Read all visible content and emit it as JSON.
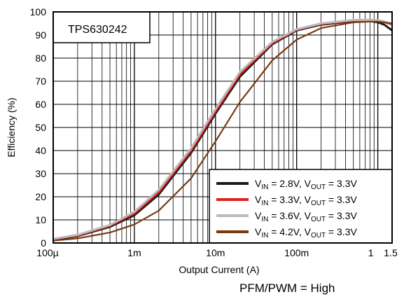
{
  "chart_data": {
    "type": "line",
    "title": "TPS630242",
    "xlabel": "Output Current (A)",
    "ylabel": "Efficiency (%)",
    "x_scale": "log",
    "xlim": [
      0.0001,
      1.5
    ],
    "ylim": [
      0,
      100
    ],
    "x_ticks": [
      0.0001,
      0.001,
      0.01,
      0.1,
      1,
      1.5
    ],
    "x_tick_labels": [
      "100µ",
      "1m",
      "10m",
      "100m",
      "1",
      "1.5"
    ],
    "y_ticks": [
      0,
      10,
      20,
      30,
      40,
      50,
      60,
      70,
      80,
      90,
      100
    ],
    "grid": true,
    "legend_position": "bottom-right",
    "series": [
      {
        "name": "V_IN = 2.8V, V_OUT = 3.3V",
        "vin": "2.8V",
        "vout": "3.3V",
        "color": "#1a1a1a",
        "x": [
          0.0001,
          0.0002,
          0.0005,
          0.001,
          0.002,
          0.005,
          0.01,
          0.02,
          0.05,
          0.1,
          0.2,
          0.5,
          0.8,
          1,
          1.2,
          1.5
        ],
        "y": [
          1.5,
          3,
          7,
          12,
          21,
          39,
          56,
          72,
          86,
          92,
          94.5,
          96,
          96,
          95.5,
          94.5,
          92
        ]
      },
      {
        "name": "V_IN = 3.3V, V_OUT = 3.3V",
        "vin": "3.3V",
        "vout": "3.3V",
        "color": "#e02020",
        "x": [
          0.0001,
          0.0002,
          0.0005,
          0.001,
          0.002,
          0.005,
          0.01,
          0.02,
          0.05,
          0.1,
          0.2,
          0.5,
          0.8,
          1,
          1.2,
          1.5
        ],
        "y": [
          1.7,
          3.3,
          7.5,
          12.8,
          22,
          40,
          57,
          73,
          86.5,
          92.3,
          94.8,
          96.3,
          96.4,
          96.2,
          95.6,
          94.5
        ]
      },
      {
        "name": "V_IN = 3.6V, V_OUT = 3.3V",
        "vin": "3.6V",
        "vout": "3.3V",
        "color": "#bbbbbb",
        "x": [
          0.0001,
          0.0002,
          0.0005,
          0.001,
          0.002,
          0.005,
          0.01,
          0.02,
          0.05,
          0.1,
          0.2,
          0.5,
          0.8,
          1,
          1.2,
          1.5
        ],
        "y": [
          1.8,
          3.5,
          7.8,
          13.5,
          23,
          41,
          58,
          74,
          87,
          92.5,
          95,
          96.5,
          96.6,
          96.4,
          95.8,
          94.8
        ]
      },
      {
        "name": "V_IN = 4.2V, V_OUT = 3.3V",
        "vin": "4.2V",
        "vout": "3.3V",
        "color": "#7a3a10",
        "x": [
          0.0001,
          0.0002,
          0.0005,
          0.001,
          0.002,
          0.005,
          0.01,
          0.02,
          0.05,
          0.1,
          0.2,
          0.5,
          0.8,
          1,
          1.2,
          1.5
        ],
        "y": [
          1,
          2,
          4.5,
          8,
          14,
          28,
          44,
          61,
          79,
          88,
          93,
          95.5,
          95.8,
          95.8,
          95.5,
          95
        ]
      }
    ],
    "note": "PFM/PWM = High"
  }
}
